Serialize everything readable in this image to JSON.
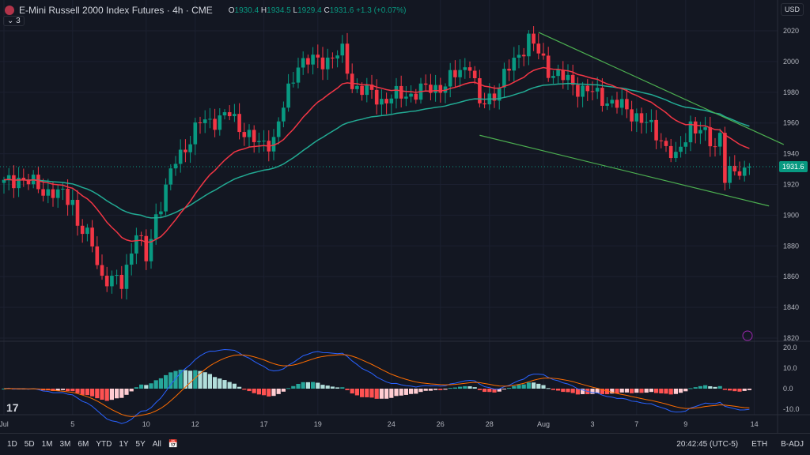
{
  "header": {
    "title": "E-Mini Russell 2000 Index Futures · 4h · CME",
    "o": "1930.4",
    "h": "1934.5",
    "l": "1929.4",
    "c": "1931.6",
    "change": "+1.3 (+0.07%)",
    "indicators_count": "3"
  },
  "currency": "USD",
  "last_price": "1931.6",
  "bottom": {
    "ranges": [
      "1D",
      "5D",
      "1M",
      "3M",
      "6M",
      "YTD",
      "1Y",
      "5Y",
      "All"
    ],
    "time": "20:42:45 (UTC-5)",
    "session": "ETH",
    "adj": "B-ADJ"
  },
  "logo_text": "TV",
  "colors": {
    "up": "#089981",
    "down": "#f23645",
    "ema_fast": "#f23645",
    "ema_slow": "#22ab94",
    "trend": "#4caf50",
    "bg": "#131722"
  },
  "chart_data": {
    "type": "candlestick",
    "price_axis": {
      "min": 1820,
      "max": 2020,
      "ticks": [
        2020,
        2000,
        1980,
        1960,
        1940,
        1920,
        1900,
        1880,
        1860,
        1840,
        1820
      ]
    },
    "macd_axis": {
      "ticks": [
        20,
        10,
        0,
        -10
      ]
    },
    "x_ticks": [
      {
        "bar": 0,
        "label": "Jul"
      },
      {
        "bar": 14,
        "label": "5"
      },
      {
        "bar": 29,
        "label": "10"
      },
      {
        "bar": 39,
        "label": "12"
      },
      {
        "bar": 53,
        "label": "17"
      },
      {
        "bar": 64,
        "label": "19"
      },
      {
        "bar": 79,
        "label": "24"
      },
      {
        "bar": 89,
        "label": "26"
      },
      {
        "bar": 99,
        "label": "28"
      },
      {
        "bar": 110,
        "label": "Aug"
      },
      {
        "bar": 120,
        "label": "3"
      },
      {
        "bar": 129,
        "label": "7"
      },
      {
        "bar": 139,
        "label": "9"
      },
      {
        "bar": 153,
        "label": "14"
      }
    ],
    "close_path": [
      [
        0,
        1920
      ],
      [
        3,
        1925
      ],
      [
        7,
        1918
      ],
      [
        14,
        1910
      ],
      [
        15,
        1895
      ],
      [
        18,
        1880
      ],
      [
        20,
        1860
      ],
      [
        24,
        1855
      ],
      [
        27,
        1890
      ],
      [
        29,
        1870
      ],
      [
        31,
        1900
      ],
      [
        35,
        1935
      ],
      [
        40,
        1960
      ],
      [
        46,
        1965
      ],
      [
        52,
        1945
      ],
      [
        55,
        1950
      ],
      [
        60,
        2000
      ],
      [
        64,
        2000
      ],
      [
        69,
        2005
      ],
      [
        71,
        1985
      ],
      [
        77,
        1975
      ],
      [
        84,
        1980
      ],
      [
        90,
        1985
      ],
      [
        95,
        2000
      ],
      [
        97,
        1970
      ],
      [
        100,
        1980
      ],
      [
        105,
        2005
      ],
      [
        107,
        2015
      ],
      [
        111,
        1995
      ],
      [
        116,
        1985
      ],
      [
        123,
        1975
      ],
      [
        129,
        1965
      ],
      [
        134,
        1950
      ],
      [
        137,
        1935
      ],
      [
        140,
        1960
      ],
      [
        145,
        1945
      ],
      [
        146,
        1955
      ],
      [
        147,
        1925
      ],
      [
        150,
        1928
      ],
      [
        152,
        1931.6
      ]
    ],
    "ema_periods": [
      20,
      50
    ],
    "trendlines": [
      {
        "from": [
          109,
          2019
        ],
        "to": [
          159,
          1946
        ]
      },
      {
        "from": [
          97,
          1952
        ],
        "to": [
          156,
          1906
        ]
      }
    ]
  }
}
